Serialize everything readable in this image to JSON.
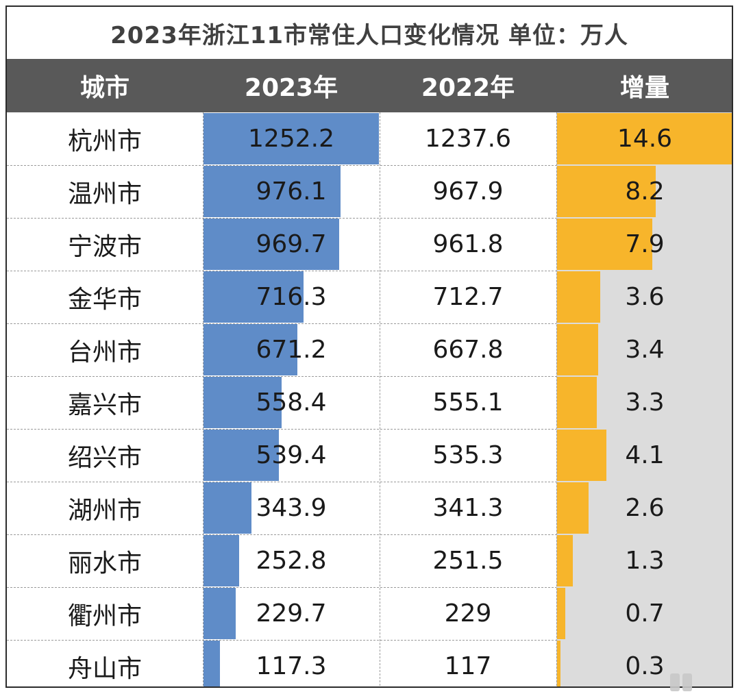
{
  "title": "2023年浙江11市常住人口变化情况   单位：万人",
  "headers": {
    "city": "城市",
    "y2023": "2023年",
    "y2022": "2022年",
    "increase": "增量"
  },
  "colors": {
    "header_bg": "#595959",
    "bar_2023": "#5f8cc8",
    "bar_increase": "#f7b52b",
    "increase_track": "#dcdcdc"
  },
  "chart_data": {
    "type": "table",
    "title": "2023年浙江11市常住人口变化情况   单位：万人",
    "columns": [
      "城市",
      "2023年",
      "2022年",
      "增量"
    ],
    "rows": [
      {
        "city": "杭州市",
        "y2023": "1252.2",
        "y2022": "1237.6",
        "increase": "14.6"
      },
      {
        "city": "温州市",
        "y2023": "976.1",
        "y2022": "967.9",
        "increase": "8.2"
      },
      {
        "city": "宁波市",
        "y2023": "969.7",
        "y2022": "961.8",
        "increase": "7.9"
      },
      {
        "city": "金华市",
        "y2023": "716.3",
        "y2022": "712.7",
        "increase": "3.6"
      },
      {
        "city": "台州市",
        "y2023": "671.2",
        "y2022": "667.8",
        "increase": "3.4"
      },
      {
        "city": "嘉兴市",
        "y2023": "558.4",
        "y2022": "555.1",
        "increase": "3.3"
      },
      {
        "city": "绍兴市",
        "y2023": "539.4",
        "y2022": "535.3",
        "increase": "4.1"
      },
      {
        "city": "湖州市",
        "y2023": "343.9",
        "y2022": "341.3",
        "increase": "2.6"
      },
      {
        "city": "丽水市",
        "y2023": "252.8",
        "y2022": "251.5",
        "increase": "1.3"
      },
      {
        "city": "衢州市",
        "y2023": "229.7",
        "y2022": "229",
        "increase": "0.7"
      },
      {
        "city": "舟山市",
        "y2023": "117.3",
        "y2022": "117",
        "increase": "0.3"
      }
    ],
    "bar_max_2023": 1252.2,
    "bar_max_increase": 14.6
  }
}
